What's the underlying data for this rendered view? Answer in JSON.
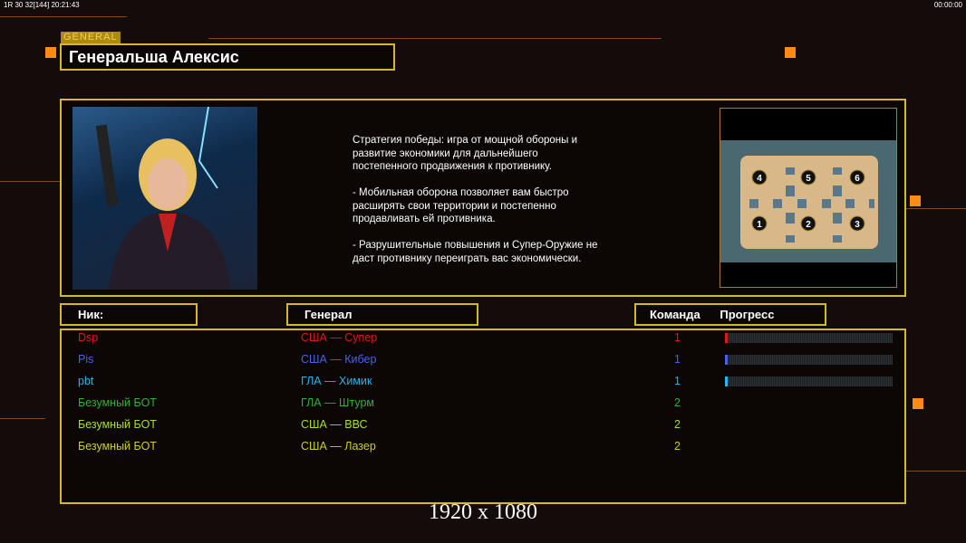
{
  "status": {
    "left": "1R 30 32[144] 20:21:43",
    "right": "00:00:00"
  },
  "header": {
    "tag": "GENERAL",
    "title": "Генеральша Алексис"
  },
  "description": "Стратегия победы: игра от мощной обороны и\n развитие экономики для дальнейшего\n постепенного продвижения к противнику.\n\n- Мобильная оборона позволяет вам быстро\n расширять свои территории и постепенно\n продавливать ей противника.\n\n- Разрушительные повышения и Супер-Оружие не\n даст противнику переиграть вас экономически.",
  "map": {
    "slots": [
      "4",
      "5",
      "6",
      "1",
      "2",
      "3"
    ]
  },
  "columns": {
    "nick": "Ник:",
    "general": "Генерал",
    "team": "Команда",
    "progress": "Прогресс"
  },
  "players": [
    {
      "nick": "Dsp",
      "general": "США — Супер",
      "team": "1",
      "color": "#e01818",
      "progress": 1
    },
    {
      "nick": "Pis",
      "general": "США — Кибер",
      "team": "1",
      "color": "#4a62e8",
      "progress": 1
    },
    {
      "nick": "pbt",
      "general": "ГЛА — Химик",
      "team": "1",
      "color": "#28b4e8",
      "progress": 1
    },
    {
      "nick": "Безумный БОТ",
      "general": "ГЛА — Штурм",
      "team": "2",
      "color": "#34b034"
    },
    {
      "nick": "Безумный БОТ",
      "general": "США — ВВС",
      "team": "2",
      "color": "#a8e020"
    },
    {
      "nick": "Безумный БОТ",
      "general": "США — Лазер",
      "team": "2",
      "color": "#ccd020"
    }
  ],
  "resolution": "1920 x 1080"
}
